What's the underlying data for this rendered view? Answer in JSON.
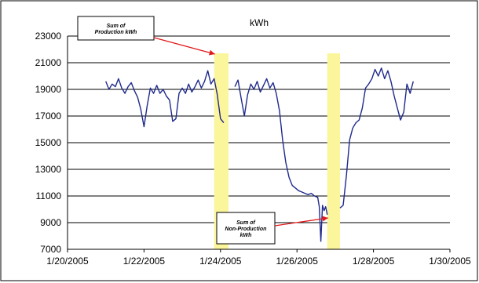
{
  "chart_data": {
    "type": "line",
    "title": "kWh",
    "xlabel": "",
    "ylabel": "",
    "x_ticks": [
      "1/20/2005",
      "1/22/2005",
      "1/24/2005",
      "1/26/2005",
      "1/28/2005",
      "1/30/2005"
    ],
    "y_ticks": [
      "23000",
      "21000",
      "19000",
      "17000",
      "15000",
      "13000",
      "11000",
      "9000",
      "7000"
    ],
    "xlim": [
      "2005-01-20",
      "2005-01-30"
    ],
    "ylim": [
      7000,
      23000
    ],
    "grid": "horizontal",
    "colors": {
      "series": "#1f2a8c",
      "highlight": "#fbf59c",
      "arrow": "#e21a1a"
    },
    "series": [
      {
        "values": [
          [
            "2005-01-21 00:00",
            19600
          ],
          [
            "2005-01-21 02:00",
            19000
          ],
          [
            "2005-01-21 04:00",
            19400
          ],
          [
            "2005-01-21 06:00",
            19200
          ],
          [
            "2005-01-21 08:00",
            19800
          ],
          [
            "2005-01-21 10:00",
            19100
          ],
          [
            "2005-01-21 12:00",
            18700
          ],
          [
            "2005-01-21 14:00",
            19200
          ],
          [
            "2005-01-21 16:00",
            19500
          ],
          [
            "2005-01-21 18:00",
            18900
          ],
          [
            "2005-01-21 20:00",
            18400
          ],
          [
            "2005-01-21 22:00",
            17500
          ],
          [
            "2005-01-22 00:00",
            16200
          ],
          [
            "2005-01-22 02:00",
            17800
          ],
          [
            "2005-01-22 04:00",
            19100
          ],
          [
            "2005-01-22 06:00",
            18700
          ],
          [
            "2005-01-22 08:00",
            19300
          ],
          [
            "2005-01-22 10:00",
            18700
          ],
          [
            "2005-01-22 12:00",
            19000
          ],
          [
            "2005-01-22 14:00",
            18500
          ],
          [
            "2005-01-22 16:00",
            18200
          ],
          [
            "2005-01-22 18:00",
            16600
          ],
          [
            "2005-01-22 20:00",
            16800
          ],
          [
            "2005-01-22 22:00",
            18700
          ],
          [
            "2005-01-23 00:00",
            19100
          ],
          [
            "2005-01-23 02:00",
            18700
          ],
          [
            "2005-01-23 04:00",
            19400
          ],
          [
            "2005-01-23 06:00",
            18800
          ],
          [
            "2005-01-23 08:00",
            19200
          ],
          [
            "2005-01-23 10:00",
            19700
          ],
          [
            "2005-01-23 12:00",
            19100
          ],
          [
            "2005-01-23 14:00",
            19600
          ],
          [
            "2005-01-23 16:00",
            20400
          ],
          [
            "2005-01-23 18:00",
            19400
          ],
          [
            "2005-01-23 20:00",
            19800
          ],
          [
            "2005-01-23 22:00",
            18600
          ],
          [
            "2005-01-24 00:00",
            16800
          ],
          [
            "2005-01-24 02:00",
            16500
          ],
          [
            "2005-01-24 09:00",
            19200
          ],
          [
            "2005-01-24 11:00",
            19700
          ],
          [
            "2005-01-24 13:00",
            18300
          ],
          [
            "2005-01-24 15:00",
            17000
          ],
          [
            "2005-01-24 17:00",
            18600
          ],
          [
            "2005-01-24 19:00",
            19400
          ],
          [
            "2005-01-24 21:00",
            19000
          ],
          [
            "2005-01-24 23:00",
            19600
          ],
          [
            "2005-01-25 01:00",
            18800
          ],
          [
            "2005-01-25 03:00",
            19300
          ],
          [
            "2005-01-25 05:00",
            19800
          ],
          [
            "2005-01-25 07:00",
            19100
          ],
          [
            "2005-01-25 09:00",
            19500
          ],
          [
            "2005-01-25 11:00",
            18700
          ],
          [
            "2005-01-25 13:00",
            17400
          ],
          [
            "2005-01-25 15:00",
            15200
          ],
          [
            "2005-01-25 17:00",
            13500
          ],
          [
            "2005-01-25 19:00",
            12400
          ],
          [
            "2005-01-25 21:00",
            11800
          ],
          [
            "2005-01-25 23:00",
            11600
          ],
          [
            "2005-01-26 01:00",
            11400
          ],
          [
            "2005-01-26 03:00",
            11300
          ],
          [
            "2005-01-26 05:00",
            11200
          ],
          [
            "2005-01-26 07:00",
            11100
          ],
          [
            "2005-01-26 09:00",
            11200
          ],
          [
            "2005-01-26 11:00",
            11000
          ],
          [
            "2005-01-26 13:00",
            10900
          ],
          [
            "2005-01-26 14:00",
            10200
          ],
          [
            "2005-01-26 15:00",
            7600
          ],
          [
            "2005-01-26 16:00",
            10300
          ],
          [
            "2005-01-26 17:00",
            9900
          ],
          [
            "2005-01-26 18:00",
            10200
          ],
          [
            "2005-01-26 19:00",
            9600
          ],
          [
            "2005-01-27 03:00",
            10100
          ],
          [
            "2005-01-27 05:00",
            10300
          ],
          [
            "2005-01-27 07:00",
            12500
          ],
          [
            "2005-01-27 09:00",
            15200
          ],
          [
            "2005-01-27 11:00",
            16100
          ],
          [
            "2005-01-27 13:00",
            16500
          ],
          [
            "2005-01-27 15:00",
            16700
          ],
          [
            "2005-01-27 17:00",
            17600
          ],
          [
            "2005-01-27 19:00",
            19100
          ],
          [
            "2005-01-27 21:00",
            19400
          ],
          [
            "2005-01-27 23:00",
            19800
          ],
          [
            "2005-01-28 01:00",
            20500
          ],
          [
            "2005-01-28 03:00",
            20000
          ],
          [
            "2005-01-28 05:00",
            20600
          ],
          [
            "2005-01-28 07:00",
            19800
          ],
          [
            "2005-01-28 09:00",
            20400
          ],
          [
            "2005-01-28 11:00",
            19600
          ],
          [
            "2005-01-28 13:00",
            18500
          ],
          [
            "2005-01-28 15:00",
            17600
          ],
          [
            "2005-01-28 17:00",
            16700
          ],
          [
            "2005-01-28 19:00",
            17300
          ],
          [
            "2005-01-28 21:00",
            19400
          ],
          [
            "2005-01-28 23:00",
            18700
          ],
          [
            "2005-01-29 01:00",
            19600
          ]
        ]
      }
    ],
    "highlight_bands": [
      {
        "label": "Sum of Production kWh",
        "x_start": "2005-01-23 20:00",
        "x_end": "2005-01-24 05:00"
      },
      {
        "label": "Sum of Non-Production kWh",
        "x_start": "2005-01-26 19:00",
        "x_end": "2005-01-27 03:00"
      }
    ],
    "annotations": [
      {
        "lines": [
          "Sum of",
          "Production kWh"
        ],
        "points_to": "2005-01-23 20:00"
      },
      {
        "lines": [
          "Sum of",
          "Non-Production",
          "kWh"
        ],
        "points_to": "2005-01-26 19:00"
      }
    ]
  }
}
